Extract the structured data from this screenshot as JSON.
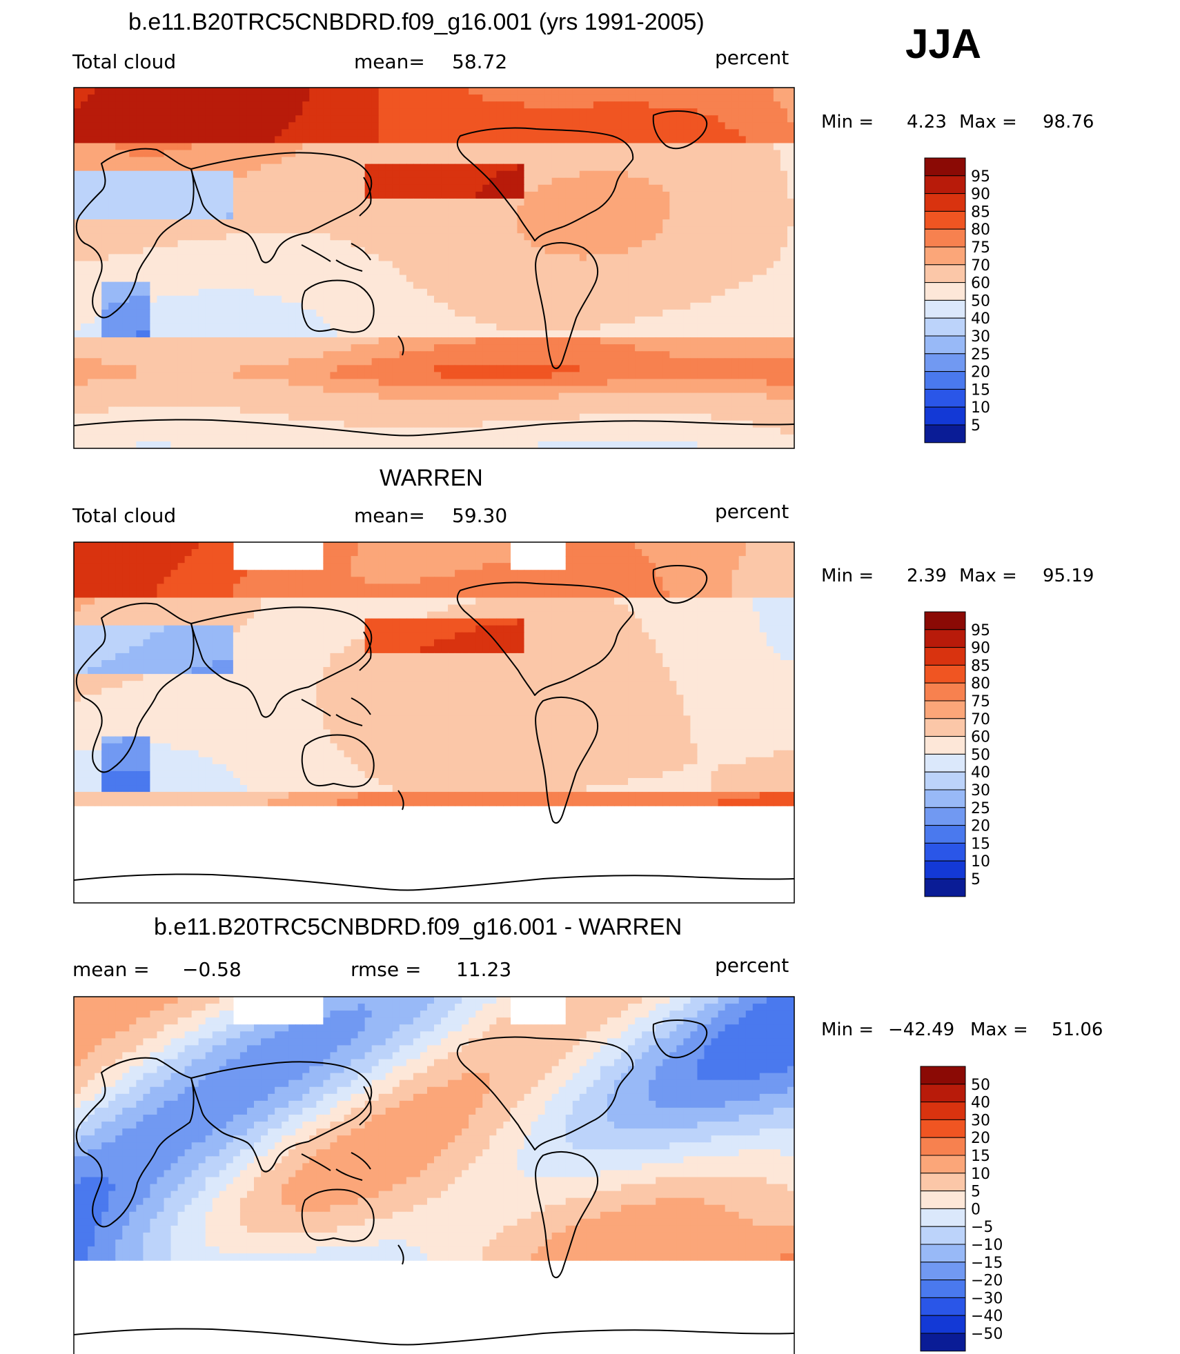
{
  "season": "JJA",
  "panels": [
    {
      "title": "b.e11.B20TRC5CNBDRD.f09_g16.001 (yrs 1991-2005)",
      "left_label": "Total cloud",
      "mid_label": "mean=",
      "mid_value": "58.72",
      "right_label": "percent",
      "minmax": {
        "min_label": "Min =",
        "min": "4.23",
        "max_label": "Max =",
        "max": "98.76"
      }
    },
    {
      "title": "WARREN",
      "left_label": "Total cloud",
      "mid_label": "mean=",
      "mid_value": "59.30",
      "right_label": "percent",
      "minmax": {
        "min_label": "Min =",
        "min": "2.39",
        "max_label": "Max =",
        "max": "95.19"
      }
    },
    {
      "title": "b.e11.B20TRC5CNBDRD.f09_g16.001 - WARREN",
      "left_label": "mean =",
      "left_value": "−0.58",
      "mid_label": "rmse =",
      "mid_value": "11.23",
      "right_label": "percent",
      "minmax": {
        "min_label": "Min =",
        "min": "−42.49",
        "max_label": "Max =",
        "max": "51.06"
      }
    }
  ],
  "colorbars": {
    "field": {
      "labels": [
        "95",
        "90",
        "85",
        "80",
        "75",
        "70",
        "60",
        "50",
        "40",
        "30",
        "25",
        "20",
        "15",
        "10",
        "5"
      ],
      "colors": [
        "#8b0a05",
        "#b81b0a",
        "#d9330f",
        "#f05522",
        "#f7814f",
        "#fba679",
        "#fbc7a8",
        "#fde7d8",
        "#dbe8fb",
        "#bcd3fa",
        "#98b9f7",
        "#7199f2",
        "#4a79ee",
        "#2a56e8",
        "#1339d6",
        "#0a1c96"
      ]
    },
    "diff": {
      "labels": [
        "50",
        "40",
        "30",
        "20",
        "15",
        "10",
        "5",
        "0",
        "−5",
        "−10",
        "−15",
        "−20",
        "−30",
        "−40",
        "−50"
      ],
      "colors": [
        "#8b0a05",
        "#b81b0a",
        "#d9330f",
        "#f05522",
        "#f7814f",
        "#fba679",
        "#fbc7a8",
        "#fde7d8",
        "#dbe8fb",
        "#bcd3fa",
        "#98b9f7",
        "#7199f2",
        "#4a79ee",
        "#2a56e8",
        "#1339d6",
        "#0a1c96"
      ]
    }
  },
  "chart_data": [
    {
      "type": "heatmap",
      "title": "b.e11.B20TRC5CNBDRD.f09_g16.001 (yrs 1991-2005)",
      "variable": "Total cloud",
      "units": "percent",
      "mean": 58.72,
      "min": 4.23,
      "max": 98.76,
      "levels": [
        5,
        10,
        15,
        20,
        25,
        30,
        40,
        50,
        60,
        70,
        75,
        80,
        85,
        90,
        95
      ]
    },
    {
      "type": "heatmap",
      "title": "WARREN",
      "variable": "Total cloud",
      "units": "percent",
      "mean": 59.3,
      "min": 2.39,
      "max": 95.19,
      "levels": [
        5,
        10,
        15,
        20,
        25,
        30,
        40,
        50,
        60,
        70,
        75,
        80,
        85,
        90,
        95
      ]
    },
    {
      "type": "heatmap",
      "title": "b.e11.B20TRC5CNBDRD.f09_g16.001 - WARREN",
      "units": "percent",
      "mean": -0.58,
      "rmse": 11.23,
      "min": -42.49,
      "max": 51.06,
      "levels": [
        -50,
        -40,
        -30,
        -20,
        -15,
        -10,
        -5,
        0,
        5,
        10,
        15,
        20,
        30,
        40,
        50
      ]
    }
  ]
}
